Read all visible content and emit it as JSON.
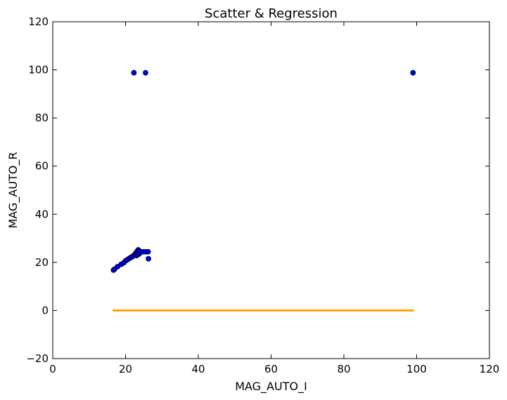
{
  "chart_data": {
    "type": "scatter",
    "title": "Scatter & Regression",
    "xlabel": "MAG_AUTO_I",
    "ylabel": "MAG_AUTO_R",
    "xlim": [
      0,
      120
    ],
    "ylim": [
      -20,
      120
    ],
    "xticks": [
      0,
      20,
      40,
      60,
      80,
      100,
      120
    ],
    "yticks": [
      -20,
      0,
      20,
      40,
      60,
      80,
      100,
      120
    ],
    "grid": false,
    "colors": {
      "scatter_fill": "#0000ff",
      "scatter_edge": "#000000",
      "regression_line": "#ffa500"
    },
    "scatter_points": [
      {
        "x": 22.3,
        "y": 98.8
      },
      {
        "x": 25.5,
        "y": 98.8
      },
      {
        "x": 99.0,
        "y": 98.8
      },
      {
        "x": 16.7,
        "y": 16.8
      },
      {
        "x": 17.0,
        "y": 17.2
      },
      {
        "x": 17.8,
        "y": 18.2
      },
      {
        "x": 18.8,
        "y": 19.2
      },
      {
        "x": 19.5,
        "y": 19.8
      },
      {
        "x": 20.0,
        "y": 20.6
      },
      {
        "x": 20.5,
        "y": 21.1
      },
      {
        "x": 21.0,
        "y": 21.6
      },
      {
        "x": 21.4,
        "y": 22.0
      },
      {
        "x": 21.8,
        "y": 22.3
      },
      {
        "x": 22.2,
        "y": 22.8
      },
      {
        "x": 22.6,
        "y": 23.4
      },
      {
        "x": 22.9,
        "y": 24.0
      },
      {
        "x": 23.2,
        "y": 24.6
      },
      {
        "x": 23.5,
        "y": 25.2
      },
      {
        "x": 23.7,
        "y": 24.8
      },
      {
        "x": 23.0,
        "y": 22.8
      },
      {
        "x": 23.4,
        "y": 23.2
      },
      {
        "x": 23.8,
        "y": 23.6
      },
      {
        "x": 24.2,
        "y": 24.4
      },
      {
        "x": 24.8,
        "y": 24.4
      },
      {
        "x": 25.6,
        "y": 24.4
      },
      {
        "x": 26.2,
        "y": 24.4
      },
      {
        "x": 26.3,
        "y": 21.5
      }
    ],
    "regression": {
      "x_start": 16.7,
      "x_end": 99.0,
      "y_start": 0,
      "y_end": 0
    }
  }
}
